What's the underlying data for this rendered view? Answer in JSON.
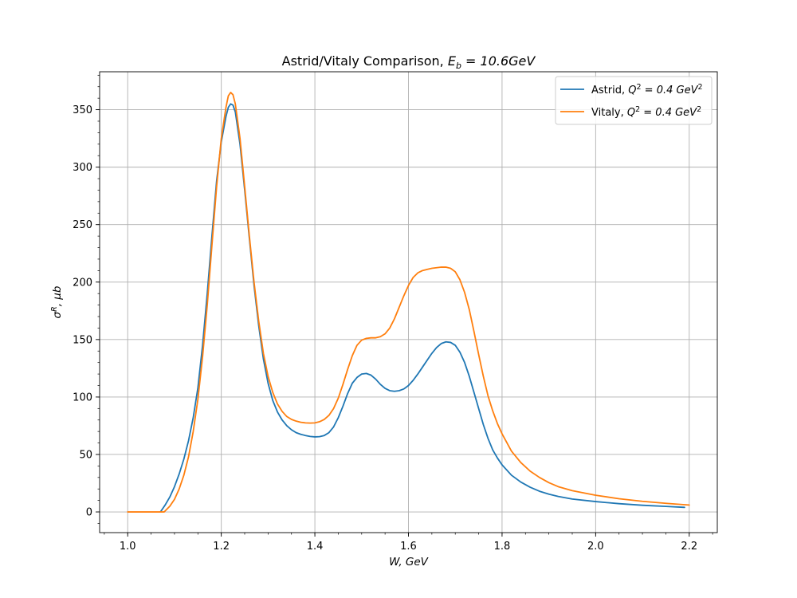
{
  "chart_data": {
    "type": "line",
    "title_prefix": "Astrid/Vitaly Comparison, ",
    "title_math_base": "E",
    "title_math_sub": "b",
    "title_math_rest": " = 10.6GeV",
    "xlabel": "W, GeV",
    "ylabel_base": "σ",
    "ylabel_sup": "R",
    "ylabel_rest": ", μb",
    "xlim": [
      0.94,
      2.26
    ],
    "ylim": [
      -18,
      383
    ],
    "x_ticks": [
      1.0,
      1.2,
      1.4,
      1.6,
      1.8,
      2.0,
      2.2
    ],
    "x_tick_labels": [
      "1.0",
      "1.2",
      "1.4",
      "1.6",
      "1.8",
      "2.0",
      "2.2"
    ],
    "x_minor_step": 0.05,
    "y_ticks": [
      0,
      50,
      100,
      150,
      200,
      250,
      300,
      350
    ],
    "y_tick_labels": [
      "0",
      "50",
      "100",
      "150",
      "200",
      "250",
      "300",
      "350"
    ],
    "y_minor_step": 10,
    "grid": true,
    "legend_position": "top-right",
    "series": [
      {
        "name_prefix": "Astrid, ",
        "name_math": "Q",
        "name_sup": "2",
        "name_rest": " = 0.4 GeV",
        "name_sup2": "2",
        "color": "#1f77b4",
        "points": [
          [
            1.07,
            0
          ],
          [
            1.08,
            6
          ],
          [
            1.09,
            13
          ],
          [
            1.1,
            22
          ],
          [
            1.11,
            33
          ],
          [
            1.12,
            46
          ],
          [
            1.13,
            62
          ],
          [
            1.14,
            82
          ],
          [
            1.15,
            108
          ],
          [
            1.16,
            145
          ],
          [
            1.17,
            190
          ],
          [
            1.18,
            240
          ],
          [
            1.19,
            288
          ],
          [
            1.2,
            322
          ],
          [
            1.21,
            344
          ],
          [
            1.215,
            352
          ],
          [
            1.22,
            355
          ],
          [
            1.225,
            354
          ],
          [
            1.23,
            348
          ],
          [
            1.24,
            320
          ],
          [
            1.25,
            280
          ],
          [
            1.26,
            238
          ],
          [
            1.27,
            197
          ],
          [
            1.28,
            162
          ],
          [
            1.29,
            133
          ],
          [
            1.3,
            112
          ],
          [
            1.31,
            97
          ],
          [
            1.32,
            87
          ],
          [
            1.33,
            80
          ],
          [
            1.34,
            75
          ],
          [
            1.35,
            71.5
          ],
          [
            1.36,
            69
          ],
          [
            1.37,
            67.5
          ],
          [
            1.38,
            66.5
          ],
          [
            1.39,
            65.7
          ],
          [
            1.4,
            65.3
          ],
          [
            1.41,
            65.5
          ],
          [
            1.42,
            66.5
          ],
          [
            1.43,
            69
          ],
          [
            1.44,
            74
          ],
          [
            1.45,
            82
          ],
          [
            1.46,
            92
          ],
          [
            1.47,
            103
          ],
          [
            1.48,
            112
          ],
          [
            1.49,
            117
          ],
          [
            1.5,
            120
          ],
          [
            1.51,
            120.5
          ],
          [
            1.52,
            119
          ],
          [
            1.53,
            115.5
          ],
          [
            1.54,
            111
          ],
          [
            1.55,
            107.5
          ],
          [
            1.56,
            105.5
          ],
          [
            1.57,
            105
          ],
          [
            1.58,
            105.5
          ],
          [
            1.59,
            107
          ],
          [
            1.6,
            110
          ],
          [
            1.61,
            114.5
          ],
          [
            1.62,
            120
          ],
          [
            1.63,
            126
          ],
          [
            1.64,
            132
          ],
          [
            1.65,
            138
          ],
          [
            1.66,
            143
          ],
          [
            1.67,
            146.5
          ],
          [
            1.68,
            148
          ],
          [
            1.69,
            147.5
          ],
          [
            1.7,
            145
          ],
          [
            1.71,
            139
          ],
          [
            1.72,
            130
          ],
          [
            1.73,
            118
          ],
          [
            1.74,
            104
          ],
          [
            1.75,
            90
          ],
          [
            1.76,
            76
          ],
          [
            1.77,
            64
          ],
          [
            1.78,
            54
          ],
          [
            1.79,
            47
          ],
          [
            1.8,
            41
          ],
          [
            1.82,
            32
          ],
          [
            1.84,
            26
          ],
          [
            1.86,
            21.5
          ],
          [
            1.88,
            18
          ],
          [
            1.9,
            15.5
          ],
          [
            1.92,
            13.5
          ],
          [
            1.95,
            11.2
          ],
          [
            2.0,
            9
          ],
          [
            2.05,
            7.2
          ],
          [
            2.1,
            5.8
          ],
          [
            2.15,
            4.8
          ],
          [
            2.19,
            4
          ]
        ]
      },
      {
        "name_prefix": "Vitaly, ",
        "name_math": "Q",
        "name_sup": "2",
        "name_rest": " = 0.4 GeV",
        "name_sup2": "2",
        "color": "#ff7f0e",
        "points": [
          [
            1.0,
            0
          ],
          [
            1.02,
            0
          ],
          [
            1.04,
            0
          ],
          [
            1.06,
            0
          ],
          [
            1.078,
            0
          ],
          [
            1.09,
            5
          ],
          [
            1.1,
            11
          ],
          [
            1.11,
            20
          ],
          [
            1.12,
            32
          ],
          [
            1.13,
            48
          ],
          [
            1.14,
            70
          ],
          [
            1.15,
            98
          ],
          [
            1.16,
            135
          ],
          [
            1.17,
            180
          ],
          [
            1.18,
            232
          ],
          [
            1.19,
            283
          ],
          [
            1.2,
            325
          ],
          [
            1.21,
            352
          ],
          [
            1.215,
            362
          ],
          [
            1.22,
            365
          ],
          [
            1.225,
            363
          ],
          [
            1.23,
            355
          ],
          [
            1.24,
            325
          ],
          [
            1.25,
            283
          ],
          [
            1.26,
            240
          ],
          [
            1.27,
            200
          ],
          [
            1.28,
            166
          ],
          [
            1.29,
            138
          ],
          [
            1.3,
            118
          ],
          [
            1.31,
            104
          ],
          [
            1.32,
            94
          ],
          [
            1.33,
            87.5
          ],
          [
            1.34,
            83
          ],
          [
            1.35,
            80.5
          ],
          [
            1.36,
            79
          ],
          [
            1.37,
            78
          ],
          [
            1.38,
            77.5
          ],
          [
            1.39,
            77.3
          ],
          [
            1.4,
            77.5
          ],
          [
            1.41,
            78.5
          ],
          [
            1.42,
            80.5
          ],
          [
            1.43,
            84
          ],
          [
            1.44,
            90
          ],
          [
            1.45,
            99
          ],
          [
            1.46,
            111
          ],
          [
            1.47,
            124
          ],
          [
            1.48,
            136
          ],
          [
            1.49,
            145
          ],
          [
            1.5,
            149.5
          ],
          [
            1.51,
            151
          ],
          [
            1.52,
            151.5
          ],
          [
            1.53,
            151.5
          ],
          [
            1.54,
            152.5
          ],
          [
            1.55,
            155
          ],
          [
            1.56,
            160
          ],
          [
            1.57,
            168
          ],
          [
            1.58,
            178
          ],
          [
            1.59,
            188
          ],
          [
            1.6,
            197
          ],
          [
            1.61,
            204
          ],
          [
            1.62,
            208
          ],
          [
            1.63,
            210
          ],
          [
            1.64,
            211
          ],
          [
            1.65,
            212
          ],
          [
            1.66,
            212.5
          ],
          [
            1.67,
            213
          ],
          [
            1.68,
            213
          ],
          [
            1.69,
            212
          ],
          [
            1.7,
            209
          ],
          [
            1.71,
            202
          ],
          [
            1.72,
            191
          ],
          [
            1.73,
            176
          ],
          [
            1.74,
            157
          ],
          [
            1.75,
            137
          ],
          [
            1.76,
            118
          ],
          [
            1.77,
            101
          ],
          [
            1.78,
            88
          ],
          [
            1.79,
            77
          ],
          [
            1.8,
            68
          ],
          [
            1.82,
            53
          ],
          [
            1.84,
            43
          ],
          [
            1.86,
            35.5
          ],
          [
            1.88,
            30
          ],
          [
            1.9,
            25.5
          ],
          [
            1.92,
            22
          ],
          [
            1.95,
            18.5
          ],
          [
            2.0,
            14.5
          ],
          [
            2.05,
            11.5
          ],
          [
            2.1,
            9.2
          ],
          [
            2.15,
            7.5
          ],
          [
            2.19,
            6.3
          ],
          [
            2.2,
            6
          ]
        ]
      }
    ]
  }
}
